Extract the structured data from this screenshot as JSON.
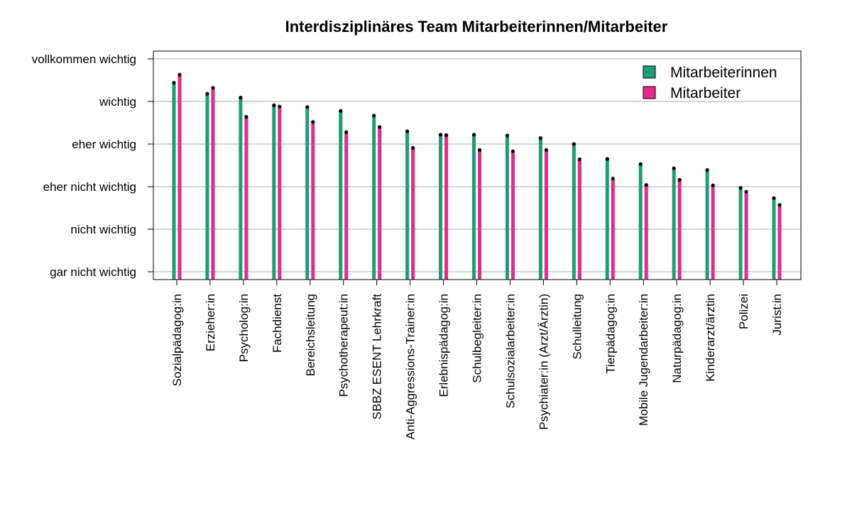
{
  "chart_data": {
    "type": "bar",
    "title": "Interdisziplinäres Team Mitarbeiterinnen/Mitarbeiter",
    "xlabel": "",
    "ylabel": "",
    "ylim": [
      1,
      6
    ],
    "y_tick_labels": [
      "gar nicht wichtig",
      "nicht wichtig",
      "eher nicht wichtig",
      "eher wichtig",
      "wichtig",
      "vollkommen wichtig"
    ],
    "y_tick_values": [
      1,
      2,
      3,
      4,
      5,
      6
    ],
    "grid": true,
    "legend_position": "top-right",
    "categories": [
      "Sozialpädagog:in",
      "Erzieher:in",
      "Psycholog:in",
      "Fachdienst",
      "Bereichsleitung",
      "Psychotherapeut:in",
      "SBBZ ESENT Lehrkraft",
      "Anti-Aggressions-Trainer:in",
      "Erlebnispädagog:in",
      "Schulbegleiter:in",
      "Schulsozialarbeiter:in",
      "Psychiater:in (Arzt/Ärztin)",
      "Schulleitung",
      "Tierpädagog:in",
      "Mobile Jugendarbeiter:in",
      "Naturpädagog:in",
      "Kinderarzt/ärztin",
      "Polizei",
      "Jurist:in"
    ],
    "series": [
      {
        "name": "Mitarbeiterinnen",
        "color": "#1b9e77",
        "values": [
          5.44,
          5.18,
          5.09,
          4.91,
          4.87,
          4.78,
          4.67,
          4.3,
          4.22,
          4.22,
          4.2,
          4.14,
          4.0,
          3.65,
          3.53,
          3.43,
          3.39,
          2.97,
          2.73
        ]
      },
      {
        "name": "Mitarbeiter",
        "color": "#e7298a",
        "values": [
          5.63,
          5.32,
          4.64,
          4.88,
          4.52,
          4.28,
          4.4,
          3.91,
          4.21,
          3.86,
          3.83,
          3.86,
          3.64,
          3.19,
          3.04,
          3.16,
          3.03,
          2.88,
          2.57
        ]
      }
    ]
  }
}
